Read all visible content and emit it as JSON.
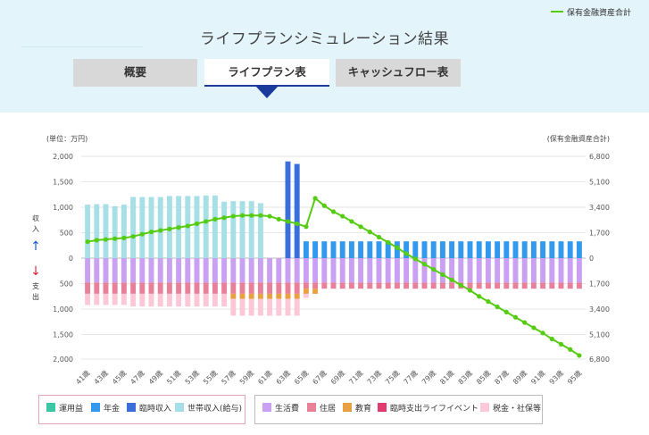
{
  "page": {
    "title": "ライフプランシミュレーション結果",
    "tabs": [
      {
        "label": "概要",
        "active": false
      },
      {
        "label": "ライフプラン表",
        "active": true
      },
      {
        "label": "キャッシュフロー表",
        "active": false
      }
    ]
  },
  "legend": {
    "income": [
      {
        "label": "運用益",
        "color": "#3cc6a6"
      },
      {
        "label": "年金",
        "color": "#3399ee"
      },
      {
        "label": "臨時収入",
        "color": "#3a6fdb"
      },
      {
        "label": "世帯収入(給与)",
        "color": "#a6e0e6"
      }
    ],
    "expense": [
      {
        "label": "生活費",
        "color": "#c9a0f2"
      },
      {
        "label": "住居",
        "color": "#e8809a"
      },
      {
        "label": "教育",
        "color": "#e8a040"
      },
      {
        "label": "臨時支出ライフイベント",
        "color": "#e03b6e"
      },
      {
        "label": "税金・社保等",
        "color": "#fcc8d8"
      }
    ],
    "line": {
      "label": "保有金融資産合計",
      "color": "#55cc11"
    }
  },
  "chart_data": {
    "type": "bar",
    "left_unit_label": "(単位：万円)",
    "right_unit_label": "(保有金融資産合計)",
    "income_axis_label": [
      "収",
      "入"
    ],
    "expense_axis_label": [
      "支",
      "出"
    ],
    "income_axis_color": "#1a55cc",
    "expense_axis_color": "#e0223a",
    "left_ticks_income": [
      "2,000",
      "1,500",
      "1,000",
      "500",
      "0"
    ],
    "left_ticks_expense": [
      "500",
      "1,000",
      "1,500",
      "2,000"
    ],
    "right_ticks": [
      "6,800",
      "5,100",
      "3,400",
      "1,700",
      "0",
      "1,700",
      "3,400",
      "5,100",
      "6,800"
    ],
    "ylim_income": [
      0,
      2000
    ],
    "ylim_expense": [
      0,
      2000
    ],
    "ylim_assets": [
      -6800,
      6800
    ],
    "x_labels": [
      "41歳",
      "43歳",
      "45歳",
      "47歳",
      "49歳",
      "51歳",
      "53歳",
      "55歳",
      "57歳",
      "59歳",
      "61歳",
      "63歳",
      "65歳",
      "67歳",
      "69歳",
      "71歳",
      "73歳",
      "75歳",
      "77歳",
      "79歳",
      "81歳",
      "83歳",
      "85歳",
      "87歳",
      "89歳",
      "91歳",
      "93歳",
      "95歳"
    ],
    "ages": [
      41,
      42,
      43,
      44,
      45,
      46,
      47,
      48,
      49,
      50,
      51,
      52,
      53,
      54,
      55,
      56,
      57,
      58,
      59,
      60,
      61,
      62,
      63,
      64,
      65,
      66,
      67,
      68,
      69,
      70,
      71,
      72,
      73,
      74,
      75,
      76,
      77,
      78,
      79,
      80,
      81,
      82,
      83,
      84,
      85,
      86,
      87,
      88,
      89,
      90,
      91,
      92,
      93,
      94,
      95
    ],
    "income_series": [
      {
        "name": "世帯収入(給与)",
        "values": [
          1050,
          1060,
          1060,
          1020,
          1050,
          1200,
          1200,
          1200,
          1200,
          1220,
          1220,
          1220,
          1220,
          1230,
          1230,
          1110,
          1120,
          1120,
          1120,
          1080,
          0,
          0,
          0,
          0,
          0,
          0,
          0,
          0,
          0,
          0,
          0,
          0,
          0,
          0,
          0,
          0,
          0,
          0,
          0,
          0,
          0,
          0,
          0,
          0,
          0,
          0,
          0,
          0,
          0,
          0,
          0,
          0,
          0,
          0,
          0
        ]
      },
      {
        "name": "臨時収入",
        "values": [
          0,
          0,
          0,
          0,
          0,
          0,
          0,
          0,
          0,
          0,
          0,
          0,
          0,
          0,
          0,
          0,
          0,
          0,
          0,
          0,
          0,
          0,
          1900,
          1850,
          0,
          0,
          0,
          0,
          0,
          0,
          0,
          0,
          0,
          0,
          0,
          0,
          0,
          0,
          0,
          0,
          0,
          0,
          0,
          0,
          0,
          0,
          0,
          0,
          0,
          0,
          0,
          0,
          0,
          0,
          0
        ]
      },
      {
        "name": "年金",
        "values": [
          0,
          0,
          0,
          0,
          0,
          0,
          0,
          0,
          0,
          0,
          0,
          0,
          0,
          0,
          0,
          0,
          0,
          0,
          0,
          0,
          0,
          0,
          0,
          0,
          330,
          330,
          330,
          330,
          330,
          330,
          330,
          330,
          330,
          330,
          330,
          330,
          330,
          330,
          330,
          330,
          330,
          330,
          330,
          330,
          330,
          330,
          330,
          330,
          330,
          330,
          330,
          330,
          330,
          330,
          330
        ]
      }
    ],
    "expense_series": [
      {
        "name": "生活費",
        "values": [
          480,
          480,
          480,
          480,
          480,
          480,
          480,
          480,
          480,
          480,
          480,
          480,
          480,
          480,
          480,
          480,
          480,
          480,
          480,
          480,
          480,
          480,
          480,
          480,
          480,
          480,
          480,
          480,
          480,
          480,
          480,
          480,
          480,
          480,
          480,
          480,
          480,
          480,
          480,
          480,
          480,
          480,
          480,
          480,
          480,
          480,
          480,
          480,
          480,
          480,
          480,
          480,
          480,
          480,
          480
        ]
      },
      {
        "name": "住居",
        "values": [
          220,
          220,
          220,
          220,
          220,
          220,
          220,
          220,
          220,
          220,
          220,
          220,
          220,
          220,
          220,
          220,
          220,
          220,
          220,
          220,
          220,
          220,
          220,
          220,
          120,
          120,
          120,
          120,
          120,
          120,
          120,
          120,
          120,
          120,
          120,
          120,
          120,
          120,
          120,
          120,
          120,
          120,
          120,
          120,
          120,
          120,
          120,
          120,
          120,
          120,
          120,
          120,
          120,
          120,
          120
        ]
      },
      {
        "name": "教育",
        "values": [
          0,
          0,
          0,
          0,
          0,
          0,
          0,
          0,
          0,
          0,
          0,
          0,
          0,
          0,
          0,
          0,
          100,
          100,
          100,
          100,
          100,
          100,
          100,
          100,
          100,
          100,
          0,
          0,
          0,
          0,
          0,
          0,
          0,
          0,
          0,
          0,
          0,
          0,
          0,
          0,
          0,
          0,
          0,
          0,
          0,
          0,
          0,
          0,
          0,
          0,
          0,
          0,
          0,
          0,
          0
        ]
      },
      {
        "name": "税金・社保等",
        "values": [
          220,
          220,
          220,
          220,
          220,
          250,
          250,
          250,
          250,
          250,
          250,
          250,
          250,
          250,
          250,
          250,
          330,
          330,
          330,
          330,
          330,
          330,
          330,
          330,
          80,
          0,
          0,
          0,
          0,
          0,
          0,
          0,
          0,
          0,
          0,
          0,
          0,
          0,
          0,
          0,
          0,
          0,
          0,
          0,
          0,
          0,
          0,
          0,
          0,
          0,
          0,
          0,
          0,
          0,
          0
        ]
      }
    ],
    "asset_series": {
      "name": "保有金融資産合計",
      "values": [
        1100,
        1200,
        1250,
        1300,
        1350,
        1450,
        1600,
        1750,
        1850,
        1950,
        2050,
        2150,
        2300,
        2450,
        2600,
        2700,
        2800,
        2850,
        2850,
        2850,
        2800,
        2600,
        2450,
        2300,
        2100,
        4000,
        3500,
        3100,
        2800,
        2450,
        2100,
        1750,
        1400,
        1050,
        700,
        300,
        -50,
        -400,
        -750,
        -1100,
        -1450,
        -1800,
        -2150,
        -2550,
        -2900,
        -3250,
        -3600,
        -3950,
        -4300,
        -4650,
        -5000,
        -5400,
        -5750,
        -6100,
        -6500
      ]
    }
  }
}
